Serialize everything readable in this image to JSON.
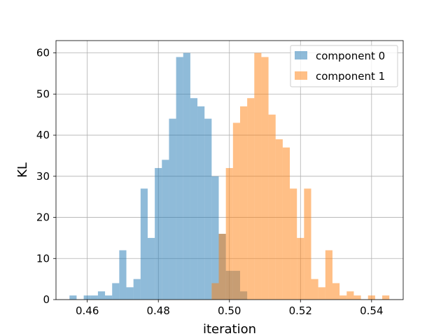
{
  "chart_data": {
    "type": "histogram",
    "title": "",
    "xlabel": "iteration",
    "ylabel": "KL",
    "xlim": [
      0.4512,
      0.5489
    ],
    "ylim": [
      0,
      63
    ],
    "grid": true,
    "legend": {
      "placement": "top-right"
    },
    "x_ticks": [
      0.46,
      0.48,
      0.5,
      0.52,
      0.54
    ],
    "x_tick_labels": [
      "0.46",
      "0.48",
      "0.50",
      "0.52",
      "0.54"
    ],
    "y_ticks": [
      0,
      10,
      20,
      30,
      40,
      50,
      60
    ],
    "y_tick_labels": [
      "0",
      "10",
      "20",
      "30",
      "40",
      "50",
      "60"
    ],
    "series": [
      {
        "name": "component 0",
        "color": "#1f77b4",
        "alpha": 0.5,
        "bin_start": 0.455,
        "bin_width": 0.002,
        "counts": [
          1,
          0,
          1,
          1,
          2,
          1,
          4,
          12,
          3,
          5,
          27,
          15,
          32,
          34,
          44,
          59,
          60,
          49,
          47,
          44,
          30,
          16,
          7,
          7,
          2
        ]
      },
      {
        "name": "component 1",
        "color": "#ff7f0e",
        "alpha": 0.5,
        "bin_start": 0.495,
        "bin_width": 0.002,
        "counts": [
          4,
          16,
          32,
          43,
          47,
          49,
          60,
          59,
          45,
          39,
          37,
          27,
          15,
          27,
          5,
          3,
          12,
          4,
          1,
          2,
          1,
          0,
          1,
          0,
          1
        ]
      }
    ]
  }
}
